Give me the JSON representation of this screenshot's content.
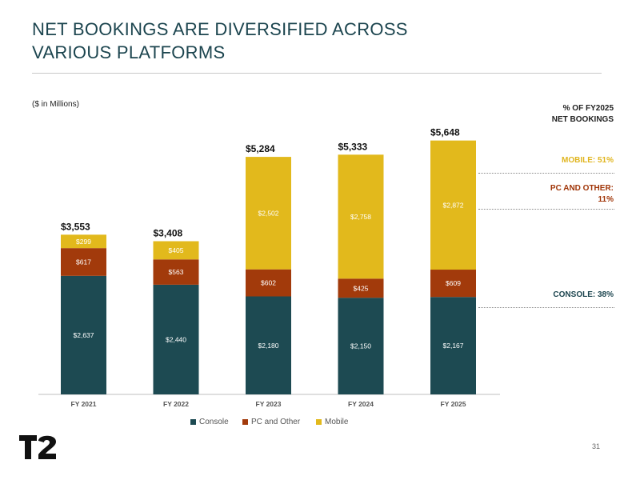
{
  "title": "NET BOOKINGS ARE DIVERSIFIED ACROSS VARIOUS PLATFORMS",
  "units_note": "($ in Millions)",
  "colors": {
    "console": "#1d4a52",
    "pc": "#a23a0b",
    "mobile": "#e2b91c",
    "title": "#1c454f"
  },
  "chart_data": {
    "type": "bar",
    "stacked": true,
    "categories": [
      "FY 2021",
      "FY 2022",
      "FY 2023",
      "FY 2024",
      "FY 2025"
    ],
    "series": [
      {
        "name": "Console",
        "values": [
          2637,
          2440,
          2180,
          2150,
          2167
        ],
        "labels": [
          "$2,637",
          "$2,440",
          "$2,180",
          "$2,150",
          "$2,167"
        ]
      },
      {
        "name": "PC and Other",
        "values": [
          617,
          563,
          602,
          425,
          609
        ],
        "labels": [
          "$617",
          "$563",
          "$602",
          "$425",
          "$609"
        ]
      },
      {
        "name": "Mobile",
        "values": [
          299,
          405,
          2502,
          2758,
          2872
        ],
        "labels": [
          "$299",
          "$405",
          "$2,502",
          "$2,758",
          "$2,872"
        ]
      }
    ],
    "totals": [
      3553,
      3408,
      5284,
      5333,
      5648
    ],
    "total_labels": [
      "$3,553",
      "$3,408",
      "$5,284",
      "$5,333",
      "$5,648"
    ],
    "xlabel": "",
    "ylabel": "",
    "grid": false,
    "legend_position": "bottom"
  },
  "side_panel": {
    "header": "% OF FY2025\nNET BOOKINGS",
    "mobile": "MOBILE: 51%",
    "pc": "PC AND OTHER:\n11%",
    "console": "CONSOLE: 38%"
  },
  "page_number": "31",
  "logo_text": "T2"
}
